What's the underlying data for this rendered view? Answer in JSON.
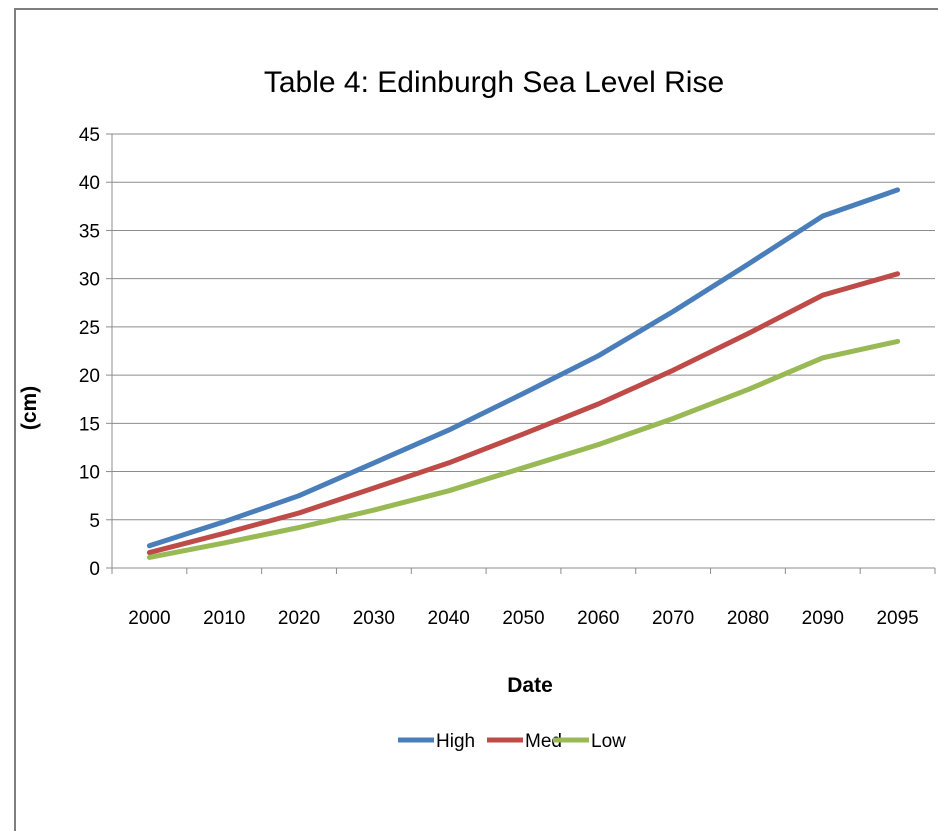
{
  "chart_data": {
    "type": "line",
    "title": "Table 4: Edinburgh Sea Level Rise",
    "xlabel": "Date",
    "ylabel": "(cm)",
    "categories": [
      "2000",
      "2010",
      "2020",
      "2030",
      "2040",
      "2050",
      "2060",
      "2070",
      "2080",
      "2090",
      "2095"
    ],
    "ylim": [
      0,
      45
    ],
    "yticks": [
      "0",
      "5",
      "10",
      "15",
      "20",
      "25",
      "30",
      "35",
      "40",
      "45"
    ],
    "grid": true,
    "legend_position": "bottom",
    "series": [
      {
        "name": "High",
        "color": "#4a7ebb",
        "values": [
          2.3,
          4.8,
          7.5,
          10.9,
          14.3,
          18.1,
          22.0,
          26.6,
          31.5,
          36.5,
          39.2
        ]
      },
      {
        "name": "Med",
        "color": "#be4b48",
        "values": [
          1.6,
          3.6,
          5.7,
          8.3,
          10.9,
          13.9,
          17.0,
          20.5,
          24.3,
          28.3,
          30.5
        ]
      },
      {
        "name": "Low",
        "color": "#98b954",
        "values": [
          1.1,
          2.6,
          4.2,
          6.0,
          8.0,
          10.4,
          12.8,
          15.5,
          18.5,
          21.8,
          23.5
        ]
      }
    ]
  }
}
